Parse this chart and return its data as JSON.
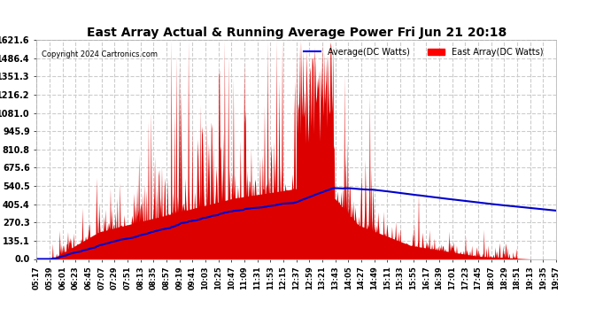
{
  "title": "East Array Actual & Running Average Power Fri Jun 21 20:18",
  "copyright": "Copyright 2024 Cartronics.com",
  "legend_average": "Average(DC Watts)",
  "legend_east": "East Array(DC Watts)",
  "yticks": [
    0.0,
    135.1,
    270.3,
    405.4,
    540.5,
    675.6,
    810.8,
    945.9,
    1081.0,
    1216.2,
    1351.3,
    1486.4,
    1621.6
  ],
  "ymax": 1621.6,
  "bg_color": "#ffffff",
  "plot_bg_color": "#ffffff",
  "grid_color": "#cccccc",
  "red_color": "#dd0000",
  "blue_color": "#0000cc",
  "title_color": "#000000",
  "copyright_color": "#000000",
  "legend_avg_color": "#0000ff",
  "legend_east_color": "#ff0000",
  "xtick_labels": [
    "05:17",
    "05:39",
    "06:01",
    "06:23",
    "06:45",
    "07:07",
    "07:29",
    "07:51",
    "08:13",
    "08:35",
    "08:57",
    "09:19",
    "09:41",
    "10:03",
    "10:25",
    "10:47",
    "11:09",
    "11:31",
    "11:53",
    "12:15",
    "12:37",
    "12:59",
    "13:21",
    "13:43",
    "14:05",
    "14:27",
    "14:49",
    "15:11",
    "15:33",
    "15:55",
    "16:17",
    "16:39",
    "17:01",
    "17:23",
    "17:45",
    "18:07",
    "18:29",
    "18:51",
    "19:13",
    "19:35",
    "19:57"
  ],
  "n_points": 820
}
